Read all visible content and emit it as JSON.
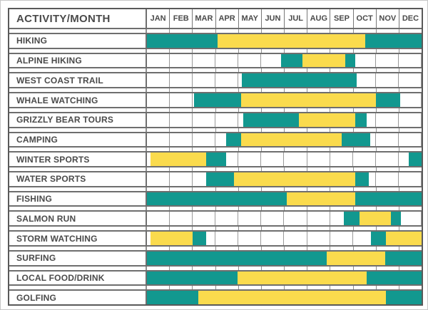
{
  "header": {
    "title": "ACTIVITY/MONTH",
    "months": [
      "JAN",
      "FEB",
      "MAR",
      "APR",
      "MAY",
      "JUN",
      "JUL",
      "AUG",
      "SEP",
      "OCT",
      "NOV",
      "DEC"
    ]
  },
  "colors": {
    "teal": "#12988F",
    "yellow": "#FADB4D",
    "grid": "#6e6e6e",
    "text": "#4a4a4a"
  },
  "chart_data": {
    "type": "bar",
    "subtype": "seasonal-gantt-calendar",
    "title": "ACTIVITY/MONTH",
    "x_axis": {
      "unit": "months",
      "range": [
        0,
        12
      ],
      "labels": [
        "JAN",
        "FEB",
        "MAR",
        "APR",
        "MAY",
        "JUN",
        "JUL",
        "AUG",
        "SEP",
        "OCT",
        "NOV",
        "DEC"
      ]
    },
    "grid": true,
    "legend_shown": false,
    "rows": [
      {
        "activity": "HIKING",
        "segments": [
          {
            "start": 0,
            "end": 3.1,
            "color": "teal"
          },
          {
            "start": 3.1,
            "end": 9.55,
            "color": "yellow"
          },
          {
            "start": 9.55,
            "end": 12,
            "color": "teal"
          }
        ]
      },
      {
        "activity": "ALPINE HIKING",
        "segments": [
          {
            "start": 5.85,
            "end": 6.8,
            "color": "teal"
          },
          {
            "start": 6.8,
            "end": 8.65,
            "color": "yellow"
          },
          {
            "start": 8.65,
            "end": 9.1,
            "color": "teal"
          }
        ]
      },
      {
        "activity": "WEST COAST TRAIL",
        "segments": [
          {
            "start": 4.15,
            "end": 9.15,
            "color": "teal"
          }
        ]
      },
      {
        "activity": "WHALE WATCHING",
        "segments": [
          {
            "start": 2.05,
            "end": 4.1,
            "color": "teal"
          },
          {
            "start": 4.1,
            "end": 10.0,
            "color": "yellow"
          },
          {
            "start": 10.0,
            "end": 11.05,
            "color": "teal"
          }
        ]
      },
      {
        "activity": "GRIZZLY BEAR TOURS",
        "segments": [
          {
            "start": 4.2,
            "end": 6.65,
            "color": "teal"
          },
          {
            "start": 6.65,
            "end": 9.1,
            "color": "yellow"
          },
          {
            "start": 9.1,
            "end": 9.6,
            "color": "teal"
          }
        ]
      },
      {
        "activity": "CAMPING",
        "segments": [
          {
            "start": 3.45,
            "end": 4.1,
            "color": "teal"
          },
          {
            "start": 4.1,
            "end": 8.5,
            "color": "yellow"
          },
          {
            "start": 8.5,
            "end": 9.75,
            "color": "teal"
          }
        ]
      },
      {
        "activity": "WINTER SPORTS",
        "segments": [
          {
            "start": 0.15,
            "end": 2.6,
            "color": "yellow"
          },
          {
            "start": 2.6,
            "end": 3.45,
            "color": "teal"
          },
          {
            "start": 11.45,
            "end": 12,
            "color": "teal"
          }
        ]
      },
      {
        "activity": "WATER SPORTS",
        "segments": [
          {
            "start": 2.6,
            "end": 3.8,
            "color": "teal"
          },
          {
            "start": 3.8,
            "end": 9.1,
            "color": "yellow"
          },
          {
            "start": 9.1,
            "end": 9.7,
            "color": "teal"
          }
        ]
      },
      {
        "activity": "FISHING",
        "segments": [
          {
            "start": 0,
            "end": 6.1,
            "color": "teal"
          },
          {
            "start": 6.1,
            "end": 9.1,
            "color": "yellow"
          },
          {
            "start": 9.1,
            "end": 12,
            "color": "teal"
          }
        ]
      },
      {
        "activity": "SALMON RUN",
        "segments": [
          {
            "start": 8.6,
            "end": 9.3,
            "color": "teal"
          },
          {
            "start": 9.3,
            "end": 10.65,
            "color": "yellow"
          },
          {
            "start": 10.65,
            "end": 11.1,
            "color": "teal"
          }
        ]
      },
      {
        "activity": "STORM WATCHING",
        "segments": [
          {
            "start": 0.15,
            "end": 2.0,
            "color": "yellow"
          },
          {
            "start": 2.0,
            "end": 2.6,
            "color": "teal"
          },
          {
            "start": 9.8,
            "end": 10.45,
            "color": "teal"
          },
          {
            "start": 10.45,
            "end": 12,
            "color": "yellow"
          }
        ]
      },
      {
        "activity": "SURFING",
        "segments": [
          {
            "start": 0,
            "end": 7.85,
            "color": "teal"
          },
          {
            "start": 7.85,
            "end": 10.4,
            "color": "yellow"
          },
          {
            "start": 10.4,
            "end": 12,
            "color": "teal"
          }
        ]
      },
      {
        "activity": "LOCAL FOOD/DRINK",
        "segments": [
          {
            "start": 0,
            "end": 3.95,
            "color": "teal"
          },
          {
            "start": 3.95,
            "end": 9.6,
            "color": "yellow"
          },
          {
            "start": 9.6,
            "end": 12,
            "color": "teal"
          }
        ]
      },
      {
        "activity": "GOLFING",
        "segments": [
          {
            "start": 0,
            "end": 2.25,
            "color": "teal"
          },
          {
            "start": 2.25,
            "end": 10.45,
            "color": "yellow"
          },
          {
            "start": 10.45,
            "end": 12,
            "color": "teal"
          }
        ]
      }
    ]
  }
}
